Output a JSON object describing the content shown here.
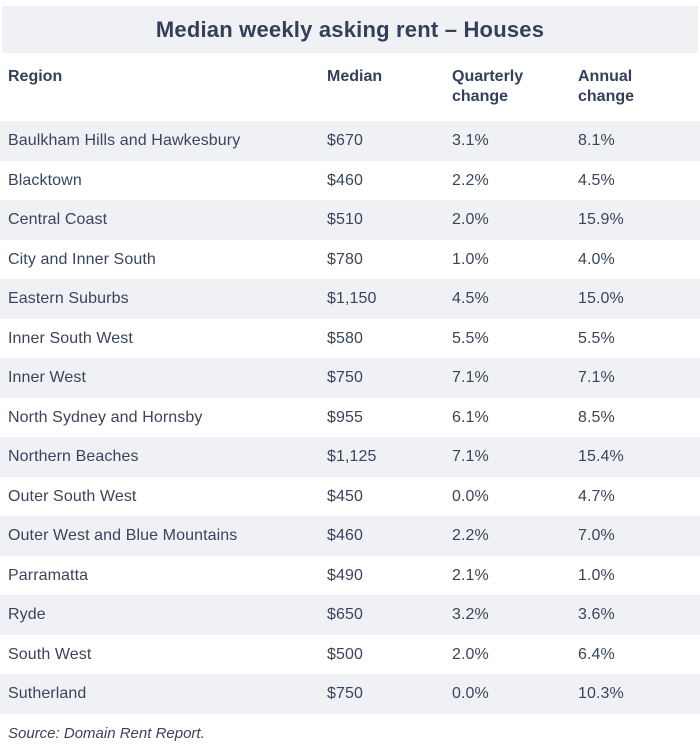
{
  "title": "Median weekly asking rent – Houses",
  "colors": {
    "stripe": "#f0f1f4",
    "title_text": "#343f58",
    "body_text": "#3a445a"
  },
  "table": {
    "columns": [
      {
        "label": "Region"
      },
      {
        "label": "Median"
      },
      {
        "label": "Quarterly\nchange"
      },
      {
        "label": "Annual\nchange"
      }
    ],
    "rows": [
      {
        "region": "Baulkham Hills and Hawkesbury",
        "median": "$670",
        "quarterly": "3.1%",
        "annual": "8.1%"
      },
      {
        "region": "Blacktown",
        "median": "$460",
        "quarterly": "2.2%",
        "annual": "4.5%"
      },
      {
        "region": "Central Coast",
        "median": "$510",
        "quarterly": "2.0%",
        "annual": "15.9%"
      },
      {
        "region": "City and Inner South",
        "median": "$780",
        "quarterly": "1.0%",
        "annual": "4.0%"
      },
      {
        "region": "Eastern Suburbs",
        "median": "$1,150",
        "quarterly": "4.5%",
        "annual": "15.0%"
      },
      {
        "region": "Inner South West",
        "median": "$580",
        "quarterly": "5.5%",
        "annual": "5.5%"
      },
      {
        "region": "Inner West",
        "median": "$750",
        "quarterly": "7.1%",
        "annual": "7.1%"
      },
      {
        "region": "North Sydney and Hornsby",
        "median": "$955",
        "quarterly": "6.1%",
        "annual": "8.5%"
      },
      {
        "region": "Northern Beaches",
        "median": "$1,125",
        "quarterly": "7.1%",
        "annual": "15.4%"
      },
      {
        "region": "Outer South West",
        "median": "$450",
        "quarterly": "0.0%",
        "annual": "4.7%"
      },
      {
        "region": "Outer West and Blue Mountains",
        "median": "$460",
        "quarterly": "2.2%",
        "annual": "7.0%"
      },
      {
        "region": "Parramatta",
        "median": "$490",
        "quarterly": "2.1%",
        "annual": "1.0%"
      },
      {
        "region": "Ryde",
        "median": "$650",
        "quarterly": "3.2%",
        "annual": "3.6%"
      },
      {
        "region": "South West",
        "median": "$500",
        "quarterly": "2.0%",
        "annual": "6.4%"
      },
      {
        "region": "Sutherland",
        "median": "$750",
        "quarterly": "0.0%",
        "annual": "10.3%"
      }
    ]
  },
  "source": "Source: Domain Rent Report.",
  "chart_data": {
    "type": "table",
    "title": "Median weekly asking rent – Houses",
    "categories": [
      "Region",
      "Median",
      "Quarterly change",
      "Annual change"
    ],
    "series": [
      {
        "name": "Median ($/week)",
        "values": [
          670,
          460,
          510,
          780,
          1150,
          580,
          750,
          955,
          1125,
          450,
          460,
          490,
          650,
          500,
          750
        ]
      },
      {
        "name": "Quarterly change (%)",
        "values": [
          3.1,
          2.2,
          2.0,
          1.0,
          4.5,
          5.5,
          7.1,
          6.1,
          7.1,
          0.0,
          2.2,
          2.1,
          3.2,
          2.0,
          0.0
        ]
      },
      {
        "name": "Annual change (%)",
        "values": [
          8.1,
          4.5,
          15.9,
          4.0,
          15.0,
          5.5,
          7.1,
          8.5,
          15.4,
          4.7,
          7.0,
          1.0,
          3.6,
          6.4,
          10.3
        ]
      }
    ],
    "x": [
      "Baulkham Hills and Hawkesbury",
      "Blacktown",
      "Central Coast",
      "City and Inner South",
      "Eastern Suburbs",
      "Inner South West",
      "Inner West",
      "North Sydney and Hornsby",
      "Northern Beaches",
      "Outer South West",
      "Outer West and Blue Mountains",
      "Parramatta",
      "Ryde",
      "South West",
      "Sutherland"
    ]
  }
}
